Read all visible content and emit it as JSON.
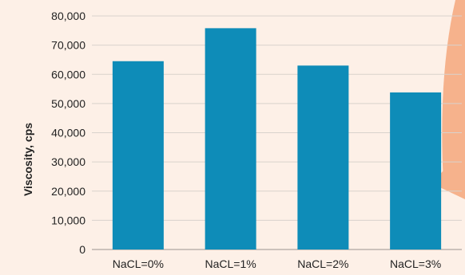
{
  "chart_data": {
    "type": "bar",
    "title": "",
    "xlabel": "",
    "ylabel": "Viscosity, cps",
    "categories": [
      "NaCL=0%",
      "NaCL=1%",
      "NaCL=2%",
      "NaCL=3%"
    ],
    "values": [
      64500,
      75800,
      63000,
      53800
    ],
    "ylim": [
      0,
      80000
    ],
    "yticks": [
      "0",
      "10,000",
      "20,000",
      "30,000",
      "40,000",
      "50,000",
      "60,000",
      "70,000",
      "80,000"
    ],
    "grid": true,
    "legend": "none"
  },
  "colors": {
    "bar": "#0e8cb8",
    "background": "#fdf0e7",
    "gridline": "#d9d2cc",
    "accent_shape": "#f6b28c"
  }
}
